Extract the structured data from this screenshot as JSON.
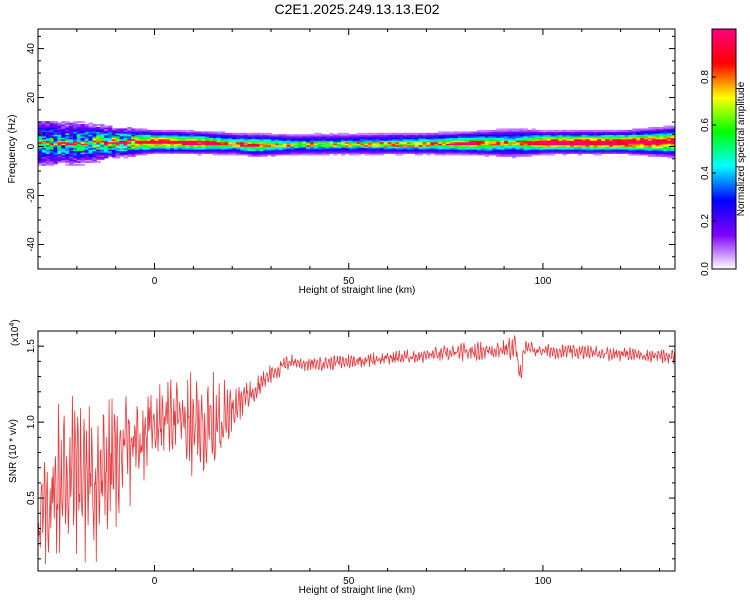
{
  "title": "C2E1.2025.249.13.13.E02",
  "chart_data": [
    {
      "type": "heatmap",
      "xlabel": "Height of straight line (km)",
      "ylabel": "Frequency (Hz)",
      "xlim": [
        -30,
        134
      ],
      "ylim": [
        -50,
        48
      ],
      "xticks": [
        0,
        50,
        100
      ],
      "yticks": [
        -40,
        -20,
        0,
        20,
        40
      ],
      "ridge": [
        {
          "x": -30,
          "f": 1.5,
          "a": 0.45,
          "w": 7
        },
        {
          "x": -20,
          "f": 1.2,
          "a": 0.5,
          "w": 6
        },
        {
          "x": -10,
          "f": 1.5,
          "a": 0.7,
          "w": 4
        },
        {
          "x": 0,
          "f": 1.8,
          "a": 0.85,
          "w": 3
        },
        {
          "x": 10,
          "f": 1.5,
          "a": 0.8,
          "w": 3
        },
        {
          "x": 20,
          "f": 1.0,
          "a": 0.55,
          "w": 3
        },
        {
          "x": 25,
          "f": 0.5,
          "a": 0.72,
          "w": 3
        },
        {
          "x": 35,
          "f": 0.6,
          "a": 0.45,
          "w": 3
        },
        {
          "x": 50,
          "f": 0.8,
          "a": 0.45,
          "w": 3
        },
        {
          "x": 70,
          "f": 1.0,
          "a": 0.55,
          "w": 3
        },
        {
          "x": 80,
          "f": 1.2,
          "a": 0.75,
          "w": 3
        },
        {
          "x": 92,
          "f": 1.3,
          "a": 0.5,
          "w": 4
        },
        {
          "x": 100,
          "f": 1.5,
          "a": 0.9,
          "w": 3
        },
        {
          "x": 120,
          "f": 1.6,
          "a": 0.95,
          "w": 3
        },
        {
          "x": 134,
          "f": 1.8,
          "a": 0.9,
          "w": 4
        }
      ],
      "colorbar": {
        "label": "Normalized spectral amplitude",
        "range": [
          0,
          1
        ],
        "ticks": [
          "0.0",
          "0.2",
          "0.4",
          "0.6",
          "0.8"
        ],
        "colors": [
          "#ffffff",
          "#7f00ff",
          "#0000ff",
          "#00ffff",
          "#00ff00",
          "#ffff00",
          "#ff0000",
          "#ff0080"
        ]
      }
    },
    {
      "type": "line",
      "xlabel": "Height of straight line (km)",
      "ylabel": "SNR (10 * v/v)",
      "exponent_label": "(x10",
      "exponent_power": "4",
      "exponent_close": ")",
      "xlim": [
        -30,
        134
      ],
      "ylim": [
        0.02,
        1.6
      ],
      "xticks": [
        0,
        50,
        100
      ],
      "yticks": [
        "0.5",
        "1.0",
        "1.5"
      ],
      "color": "#e8383c",
      "series": [
        {
          "x": [
            -30,
            -25,
            -20,
            -15,
            -10,
            -5,
            0,
            5,
            10,
            15,
            20,
            25,
            30,
            35,
            40,
            50,
            60,
            70,
            80,
            90,
            93,
            94,
            95,
            100,
            110,
            120,
            134
          ],
          "y": [
            0.3,
            0.6,
            0.7,
            0.6,
            0.75,
            0.85,
            1.0,
            1.05,
            0.95,
            0.95,
            1.1,
            1.2,
            1.32,
            1.4,
            1.38,
            1.4,
            1.42,
            1.44,
            1.46,
            1.48,
            1.5,
            1.27,
            1.48,
            1.47,
            1.46,
            1.45,
            1.43
          ],
          "spread": [
            0.3,
            0.45,
            0.5,
            0.45,
            0.35,
            0.3,
            0.2,
            0.2,
            0.3,
            0.3,
            0.12,
            0.08,
            0.06,
            0.04,
            0.04,
            0.04,
            0.04,
            0.04,
            0.05,
            0.05,
            0.08,
            0.08,
            0.05,
            0.04,
            0.04,
            0.04,
            0.04
          ]
        }
      ]
    }
  ]
}
